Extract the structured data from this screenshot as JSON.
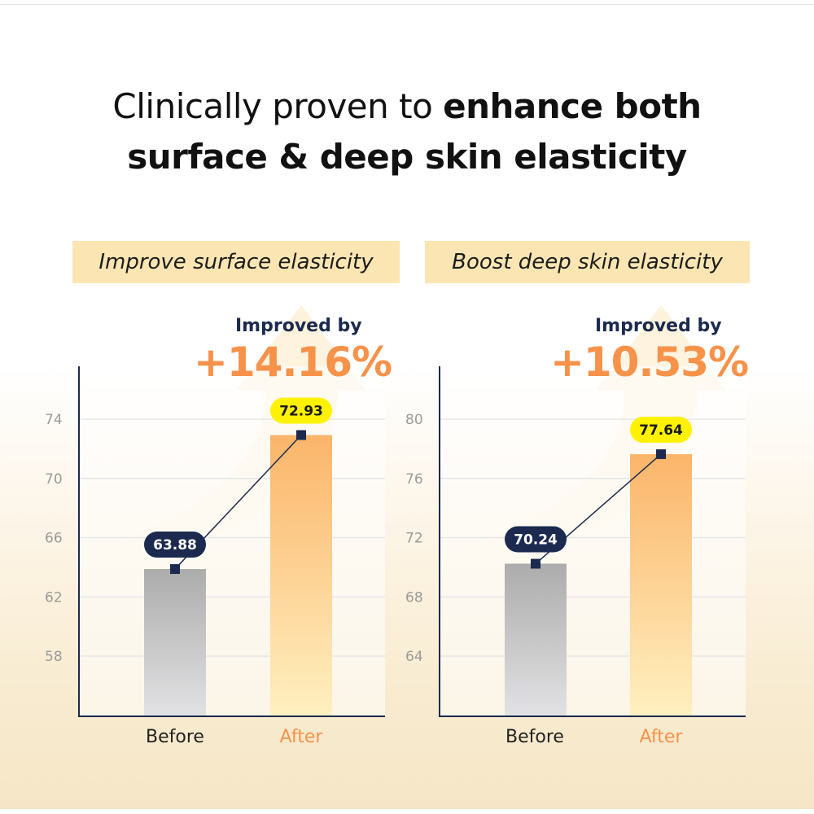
{
  "headline": {
    "regular": "Clinically proven to ",
    "bold_1": "enhance both",
    "bold_2": "surface & deep skin elasticity"
  },
  "colors": {
    "accent_orange": "#f7924a",
    "navy": "#1b2a4e",
    "highlight_yellow": "#fff200",
    "tag_bg": "#fbe6b3",
    "before_bar": "#b0b0b0",
    "after_bar": "#fbb56a"
  },
  "chart_data": [
    {
      "type": "bar",
      "title": "Improve surface elasticity",
      "annotation_label": "Improved by",
      "annotation_value": "+14.16%",
      "categories": [
        "Before",
        "After"
      ],
      "values": [
        63.88,
        72.93
      ],
      "data_labels": [
        "63.88",
        "72.93"
      ],
      "yticks": [
        58,
        62,
        66,
        70,
        74
      ],
      "ylim": [
        54,
        76
      ],
      "grid": true,
      "connector_line": true
    },
    {
      "type": "bar",
      "title": "Boost deep skin elasticity",
      "annotation_label": "Improved by",
      "annotation_value": "+10.53%",
      "categories": [
        "Before",
        "After"
      ],
      "values": [
        70.24,
        77.64
      ],
      "data_labels": [
        "70.24",
        "77.64"
      ],
      "yticks": [
        64,
        68,
        72,
        76,
        80
      ],
      "ylim": [
        60,
        82
      ],
      "grid": true,
      "connector_line": true
    }
  ]
}
